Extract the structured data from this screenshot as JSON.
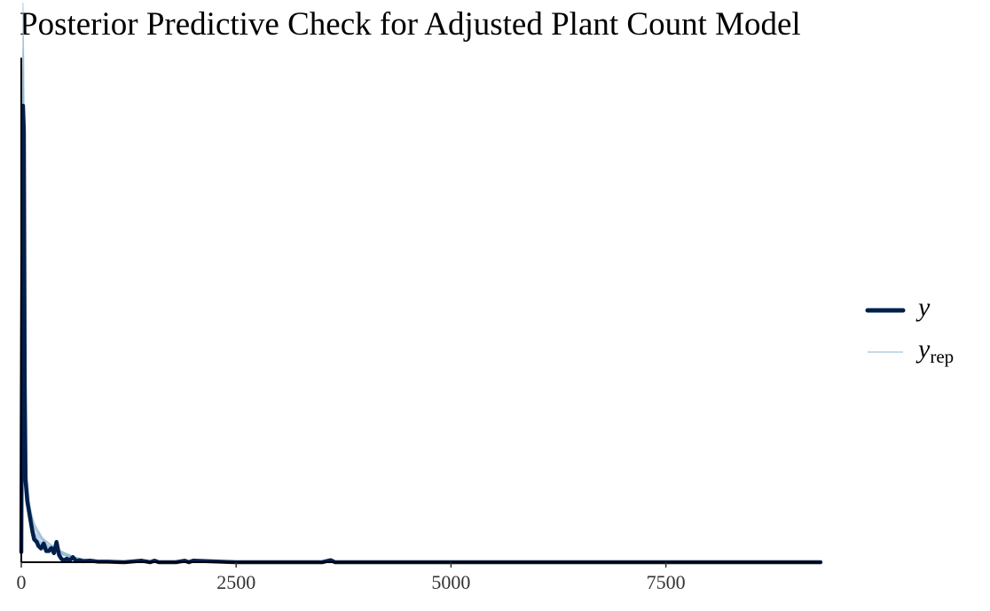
{
  "chart_data": {
    "type": "line",
    "title": "Posterior Predictive Check for Adjusted Plant Count Model",
    "xlabel": "",
    "ylabel": "",
    "xlim": [
      0,
      9300
    ],
    "ylim": [
      0,
      1
    ],
    "x_ticks": [
      0,
      2500,
      5000,
      7500
    ],
    "x_tick_labels": [
      "0",
      "2500",
      "5000",
      "7500"
    ],
    "grid": false,
    "legend_position": "right",
    "series": [
      {
        "name": "y",
        "role": "observed",
        "color": "#011f4b",
        "x": [
          0,
          10,
          20,
          30,
          40,
          50,
          70,
          90,
          110,
          130,
          150,
          180,
          200,
          230,
          260,
          290,
          320,
          350,
          380,
          410,
          440,
          470,
          500,
          530,
          560,
          600,
          640,
          680,
          720,
          800,
          900,
          1000,
          1200,
          1400,
          1500,
          1550,
          1600,
          1800,
          1900,
          1950,
          2000,
          2500,
          3000,
          3500,
          3600,
          3650,
          3700,
          4500,
          5000,
          6000,
          7000,
          8000,
          9300
        ],
        "y": [
          0.02,
          0.5,
          0.9,
          0.85,
          0.35,
          0.16,
          0.12,
          0.1,
          0.08,
          0.06,
          0.045,
          0.04,
          0.032,
          0.027,
          0.037,
          0.022,
          0.022,
          0.028,
          0.018,
          0.04,
          0.014,
          0.006,
          0.004,
          0.007,
          0.003,
          0.01,
          0.002,
          0.004,
          0.002,
          0.003,
          0.001,
          0.001,
          0.0,
          0.003,
          0.0,
          0.003,
          0.0,
          0.0,
          0.003,
          0.0,
          0.003,
          0.0,
          0.0,
          0.0,
          0.004,
          0.0,
          0.0,
          0.0,
          0.0,
          0.0,
          0.0,
          0.0,
          0.0
        ]
      },
      {
        "name": "y_rep",
        "role": "replicated",
        "color": "#b3cde0",
        "x": [
          0,
          10,
          20,
          30,
          40,
          60,
          80,
          100,
          130,
          160,
          200,
          250,
          300,
          350,
          400,
          450,
          500,
          560,
          620,
          700,
          800,
          900,
          1000,
          1200,
          1500,
          2000,
          3000,
          5000,
          9300
        ],
        "y": [
          0.03,
          0.48,
          0.88,
          0.8,
          0.33,
          0.15,
          0.12,
          0.095,
          0.075,
          0.06,
          0.05,
          0.04,
          0.034,
          0.028,
          0.024,
          0.02,
          0.016,
          0.012,
          0.009,
          0.006,
          0.004,
          0.002,
          0.0015,
          0.001,
          0.0005,
          0.0002,
          0.0,
          0.0,
          0.0
        ]
      }
    ]
  },
  "legend": {
    "y_label": "y",
    "yrep_main": "y",
    "yrep_sub": "rep"
  }
}
